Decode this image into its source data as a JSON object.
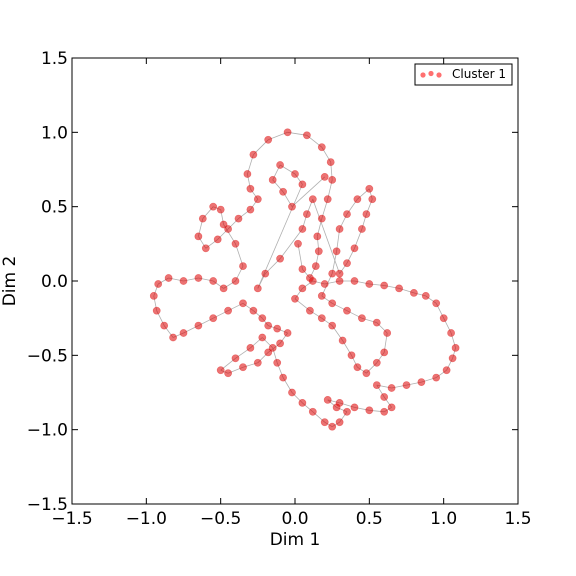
{
  "chart_data": {
    "type": "scatter",
    "title": "",
    "xlabel": "Dim 1",
    "ylabel": "Dim 2",
    "xlim": [
      -1.5,
      1.5
    ],
    "ylim": [
      -1.5,
      1.5
    ],
    "xticks": [
      "−1.5",
      "−1.0",
      "−0.5",
      "0.0",
      "0.5",
      "1.0",
      "1.5"
    ],
    "yticks": [
      "−1.5",
      "−1.0",
      "−0.5",
      "0.0",
      "0.5",
      "1.0",
      "1.5"
    ],
    "xtick_values": [
      -1.5,
      -1.0,
      -0.5,
      0.0,
      0.5,
      1.0,
      1.5
    ],
    "ytick_values": [
      -1.5,
      -1.0,
      -0.5,
      0.0,
      0.5,
      1.0,
      1.5
    ],
    "grid": false,
    "legend_position": "top-right",
    "series": [
      {
        "name": "Cluster 1",
        "color": "#dd0000",
        "link_color": "#b0b0b0",
        "approximate_structure": "dense looped trajectory of points connected by thin grey lines (lobes left, right, top and bottom around the origin)",
        "points": [
          [
            0.02,
            0.25
          ],
          [
            0.05,
            0.08
          ],
          [
            0.1,
            0.02
          ],
          [
            0.14,
            0.1
          ],
          [
            0.16,
            0.2
          ],
          [
            0.15,
            0.3
          ],
          [
            0.18,
            0.42
          ],
          [
            0.22,
            0.55
          ],
          [
            0.25,
            0.68
          ],
          [
            0.24,
            0.8
          ],
          [
            0.18,
            0.9
          ],
          [
            0.08,
            0.98
          ],
          [
            -0.05,
            1.0
          ],
          [
            -0.18,
            0.95
          ],
          [
            -0.28,
            0.85
          ],
          [
            -0.32,
            0.72
          ],
          [
            -0.3,
            0.62
          ],
          [
            -0.25,
            0.55
          ],
          [
            -0.3,
            0.48
          ],
          [
            -0.38,
            0.42
          ],
          [
            -0.45,
            0.35
          ],
          [
            -0.52,
            0.28
          ],
          [
            -0.6,
            0.22
          ],
          [
            -0.65,
            0.3
          ],
          [
            -0.62,
            0.42
          ],
          [
            -0.55,
            0.5
          ],
          [
            -0.5,
            0.48
          ],
          [
            -0.48,
            0.38
          ],
          [
            -0.4,
            0.25
          ],
          [
            -0.35,
            0.1
          ],
          [
            -0.4,
            0.0
          ],
          [
            -0.48,
            -0.05
          ],
          [
            -0.55,
            0.0
          ],
          [
            -0.65,
            0.02
          ],
          [
            -0.75,
            0.0
          ],
          [
            -0.85,
            0.02
          ],
          [
            -0.92,
            -0.02
          ],
          [
            -0.95,
            -0.1
          ],
          [
            -0.93,
            -0.2
          ],
          [
            -0.88,
            -0.3
          ],
          [
            -0.82,
            -0.38
          ],
          [
            -0.75,
            -0.35
          ],
          [
            -0.65,
            -0.3
          ],
          [
            -0.55,
            -0.25
          ],
          [
            -0.45,
            -0.2
          ],
          [
            -0.35,
            -0.15
          ],
          [
            -0.28,
            -0.2
          ],
          [
            -0.22,
            -0.25
          ],
          [
            -0.18,
            -0.3
          ],
          [
            -0.12,
            -0.32
          ],
          [
            -0.05,
            -0.35
          ],
          [
            -0.1,
            -0.42
          ],
          [
            -0.18,
            -0.48
          ],
          [
            -0.25,
            -0.55
          ],
          [
            -0.35,
            -0.58
          ],
          [
            -0.45,
            -0.62
          ],
          [
            -0.5,
            -0.6
          ],
          [
            -0.4,
            -0.52
          ],
          [
            -0.3,
            -0.45
          ],
          [
            -0.22,
            -0.38
          ],
          [
            -0.15,
            -0.45
          ],
          [
            -0.12,
            -0.55
          ],
          [
            -0.08,
            -0.65
          ],
          [
            -0.02,
            -0.75
          ],
          [
            0.05,
            -0.82
          ],
          [
            0.12,
            -0.88
          ],
          [
            0.2,
            -0.95
          ],
          [
            0.25,
            -0.98
          ],
          [
            0.3,
            -0.95
          ],
          [
            0.35,
            -0.88
          ],
          [
            0.28,
            -0.85
          ],
          [
            0.22,
            -0.8
          ],
          [
            0.3,
            -0.82
          ],
          [
            0.4,
            -0.85
          ],
          [
            0.5,
            -0.87
          ],
          [
            0.6,
            -0.88
          ],
          [
            0.65,
            -0.85
          ],
          [
            0.6,
            -0.78
          ],
          [
            0.55,
            -0.7
          ],
          [
            0.65,
            -0.72
          ],
          [
            0.75,
            -0.7
          ],
          [
            0.85,
            -0.68
          ],
          [
            0.95,
            -0.65
          ],
          [
            1.02,
            -0.6
          ],
          [
            1.06,
            -0.52
          ],
          [
            1.08,
            -0.45
          ],
          [
            1.05,
            -0.35
          ],
          [
            1.0,
            -0.25
          ],
          [
            0.95,
            -0.15
          ],
          [
            0.88,
            -0.1
          ],
          [
            0.8,
            -0.08
          ],
          [
            0.7,
            -0.05
          ],
          [
            0.6,
            -0.03
          ],
          [
            0.5,
            -0.02
          ],
          [
            0.4,
            0.0
          ],
          [
            0.3,
            0.0
          ],
          [
            0.2,
            -0.02
          ],
          [
            0.12,
            0.0
          ],
          [
            0.05,
            -0.05
          ],
          [
            0.0,
            -0.12
          ],
          [
            0.1,
            -0.2
          ],
          [
            0.18,
            -0.25
          ],
          [
            0.25,
            -0.3
          ],
          [
            0.32,
            -0.4
          ],
          [
            0.38,
            -0.5
          ],
          [
            0.42,
            -0.58
          ],
          [
            0.48,
            -0.62
          ],
          [
            0.55,
            -0.55
          ],
          [
            0.6,
            -0.48
          ],
          [
            0.62,
            -0.35
          ],
          [
            0.55,
            -0.28
          ],
          [
            0.45,
            -0.25
          ],
          [
            0.35,
            -0.2
          ],
          [
            0.25,
            -0.15
          ],
          [
            0.18,
            -0.1
          ],
          [
            0.25,
            0.05
          ],
          [
            0.28,
            0.2
          ],
          [
            0.3,
            0.35
          ],
          [
            0.35,
            0.45
          ],
          [
            0.42,
            0.55
          ],
          [
            0.5,
            0.62
          ],
          [
            0.52,
            0.55
          ],
          [
            0.48,
            0.45
          ],
          [
            0.45,
            0.35
          ],
          [
            0.4,
            0.22
          ],
          [
            0.35,
            0.12
          ],
          [
            0.3,
            0.05
          ],
          [
            0.12,
            0.55
          ],
          [
            0.08,
            0.45
          ],
          [
            0.05,
            0.35
          ],
          [
            -0.1,
            0.15
          ],
          [
            -0.2,
            0.05
          ],
          [
            -0.25,
            -0.05
          ],
          [
            0.05,
            0.65
          ],
          [
            0.0,
            0.72
          ],
          [
            -0.1,
            0.78
          ],
          [
            -0.15,
            0.68
          ],
          [
            -0.08,
            0.6
          ],
          [
            -0.02,
            0.5
          ],
          [
            0.2,
            0.7
          ]
        ]
      }
    ]
  }
}
